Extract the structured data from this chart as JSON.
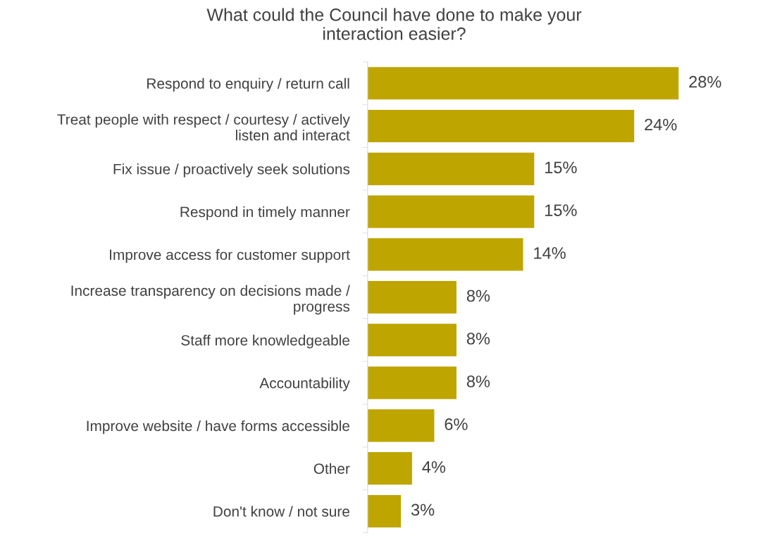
{
  "chart_data": {
    "type": "bar",
    "orientation": "horizontal",
    "title": "What could the Council have done to make your\ninteraction easier?",
    "categories": [
      "Respond to enquiry / return call",
      "Treat people with respect / courtesy / actively\nlisten and interact",
      "Fix issue / proactively seek solutions",
      "Respond in timely manner",
      "Improve access for customer support",
      "Increase transparency on decisions made /\nprogress",
      "Staff more knowledgeable",
      "Accountability",
      "Improve website / have forms accessible",
      "Other",
      "Don't know / not sure"
    ],
    "values": [
      28,
      24,
      15,
      15,
      14,
      8,
      8,
      8,
      6,
      4,
      3
    ],
    "value_labels": [
      "28%",
      "24%",
      "15%",
      "15%",
      "14%",
      "8%",
      "8%",
      "8%",
      "6%",
      "4%",
      "3%"
    ],
    "color": "#bfa500",
    "grid": false,
    "legend": false
  }
}
